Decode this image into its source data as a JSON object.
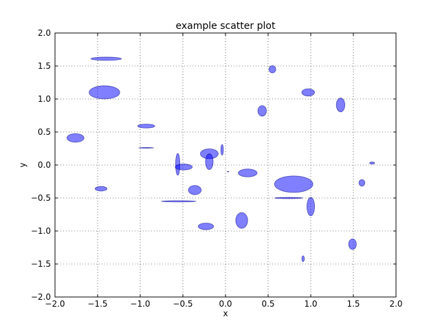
{
  "chart_data": {
    "type": "scatter",
    "title": "example scatter plot",
    "xlabel": "x",
    "ylabel": "y",
    "xlim": [
      -2.0,
      2.0
    ],
    "ylim": [
      -2.0,
      2.0
    ],
    "xticks": [
      "−2.0",
      "−1.5",
      "−1.0",
      "−0.5",
      "0.0",
      "0.5",
      "1.0",
      "1.5",
      "2.0"
    ],
    "yticks": [
      "−2.0",
      "−1.5",
      "−1.0",
      "−0.5",
      "0.0",
      "0.5",
      "1.0",
      "1.5",
      "2.0"
    ],
    "grid": true,
    "grid_style": "dotted",
    "marker": "ellipse",
    "marker_color": "#0000ff",
    "marker_edge_color": "#000080",
    "marker_alpha": 0.5,
    "points": [
      {
        "x": -1.4,
        "y": 1.61,
        "w": 0.36,
        "h": 0.05
      },
      {
        "x": -1.42,
        "y": 1.1,
        "w": 0.36,
        "h": 0.2
      },
      {
        "x": -1.76,
        "y": 0.41,
        "w": 0.2,
        "h": 0.13
      },
      {
        "x": -0.93,
        "y": 0.59,
        "w": 0.2,
        "h": 0.06
      },
      {
        "x": -0.93,
        "y": 0.26,
        "w": 0.18,
        "h": 0.01
      },
      {
        "x": -1.46,
        "y": -0.36,
        "w": 0.14,
        "h": 0.07
      },
      {
        "x": -0.56,
        "y": 0.01,
        "w": 0.05,
        "h": 0.33
      },
      {
        "x": -0.49,
        "y": -0.03,
        "w": 0.2,
        "h": 0.09
      },
      {
        "x": -0.19,
        "y": 0.17,
        "w": 0.21,
        "h": 0.15
      },
      {
        "x": -0.19,
        "y": 0.05,
        "w": 0.09,
        "h": 0.24
      },
      {
        "x": -0.04,
        "y": 0.23,
        "w": 0.03,
        "h": 0.16
      },
      {
        "x": 0.03,
        "y": -0.1,
        "w": 0.02,
        "h": 0.01
      },
      {
        "x": -0.36,
        "y": -0.38,
        "w": 0.15,
        "h": 0.14
      },
      {
        "x": -0.55,
        "y": -0.55,
        "w": 0.41,
        "h": 0.02
      },
      {
        "x": -0.23,
        "y": -0.93,
        "w": 0.18,
        "h": 0.1
      },
      {
        "x": 0.19,
        "y": -0.84,
        "w": 0.14,
        "h": 0.24
      },
      {
        "x": 0.26,
        "y": -0.12,
        "w": 0.22,
        "h": 0.12
      },
      {
        "x": 0.43,
        "y": 0.82,
        "w": 0.1,
        "h": 0.16
      },
      {
        "x": 0.55,
        "y": 1.45,
        "w": 0.08,
        "h": 0.11
      },
      {
        "x": 0.97,
        "y": 1.1,
        "w": 0.15,
        "h": 0.11
      },
      {
        "x": 1.35,
        "y": 0.91,
        "w": 0.1,
        "h": 0.21
      },
      {
        "x": 0.8,
        "y": -0.29,
        "w": 0.45,
        "h": 0.25
      },
      {
        "x": 0.74,
        "y": -0.5,
        "w": 0.33,
        "h": 0.02
      },
      {
        "x": 1.0,
        "y": -0.63,
        "w": 0.09,
        "h": 0.28
      },
      {
        "x": 1.72,
        "y": 0.03,
        "w": 0.06,
        "h": 0.03
      },
      {
        "x": 1.6,
        "y": -0.27,
        "w": 0.07,
        "h": 0.1
      },
      {
        "x": 1.49,
        "y": -1.2,
        "w": 0.09,
        "h": 0.16
      },
      {
        "x": 0.91,
        "y": -1.42,
        "w": 0.03,
        "h": 0.09
      }
    ]
  }
}
